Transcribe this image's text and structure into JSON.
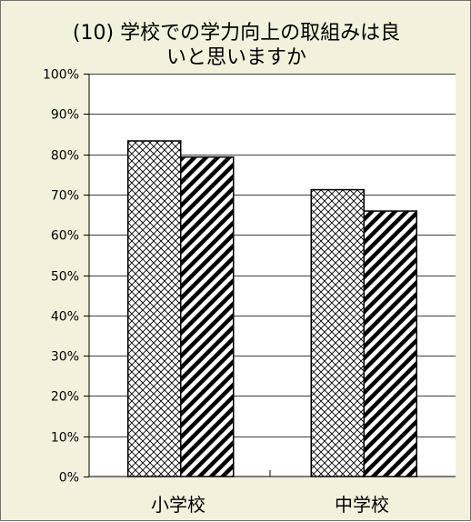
{
  "chart_data": {
    "type": "bar",
    "title_lines": [
      "(10) 学校での学力向上の取組みは良",
      "いと思いますか"
    ],
    "categories": [
      "小学校",
      "中学校"
    ],
    "series": [
      {
        "values": [
          83.3,
          71.2
        ],
        "pattern": "crosshatch"
      },
      {
        "values": [
          79.3,
          65.9
        ],
        "pattern": "diagonal"
      }
    ],
    "ylim": [
      0,
      100
    ],
    "yticks": [
      0,
      10,
      20,
      30,
      40,
      50,
      60,
      70,
      80,
      90,
      100
    ],
    "ytick_labels": [
      "0%",
      "10%",
      "20%",
      "30%",
      "40%",
      "50%",
      "60%",
      "70%",
      "80%",
      "90%",
      "100%"
    ],
    "grid": true,
    "legend": "none",
    "colors": {
      "background": "#f2f2dc",
      "plot": "#ffffff",
      "border": "#6f6f6f",
      "grid": "#000000"
    }
  }
}
